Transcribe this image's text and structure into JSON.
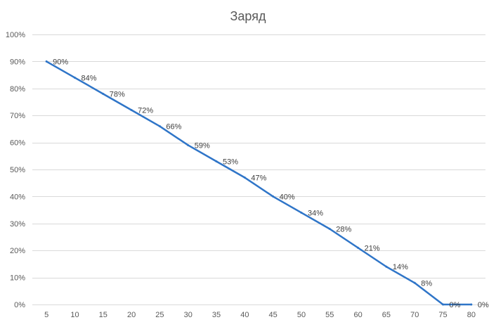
{
  "chart_data": {
    "type": "line",
    "title": "Заряд",
    "xlabel": "",
    "ylabel": "",
    "x": [
      5,
      10,
      15,
      20,
      25,
      30,
      35,
      40,
      45,
      50,
      55,
      60,
      65,
      70,
      75,
      80
    ],
    "x_tick_labels": [
      "5",
      "10",
      "15",
      "20",
      "25",
      "30",
      "35",
      "40",
      "45",
      "50",
      "55",
      "60",
      "65",
      "70",
      "75",
      "80"
    ],
    "y_ticks": [
      0,
      10,
      20,
      30,
      40,
      50,
      60,
      70,
      80,
      90,
      100
    ],
    "y_tick_labels": [
      "0%",
      "10%",
      "20%",
      "30%",
      "40%",
      "50%",
      "60%",
      "70%",
      "80%",
      "90%",
      "100%"
    ],
    "ylim": [
      0,
      100
    ],
    "grid": true,
    "legend": "none",
    "series": [
      {
        "values": [
          90,
          84,
          78,
          72,
          66,
          59,
          53,
          47,
          40,
          34,
          28,
          21,
          14,
          8,
          0,
          0
        ],
        "data_labels": [
          "90%",
          "84%",
          "78%",
          "72%",
          "66%",
          "59%",
          "53%",
          "47%",
          "40%",
          "34%",
          "28%",
          "21%",
          "14%",
          "8%",
          "0%",
          "0%"
        ],
        "color": "#2f75c8"
      }
    ]
  }
}
